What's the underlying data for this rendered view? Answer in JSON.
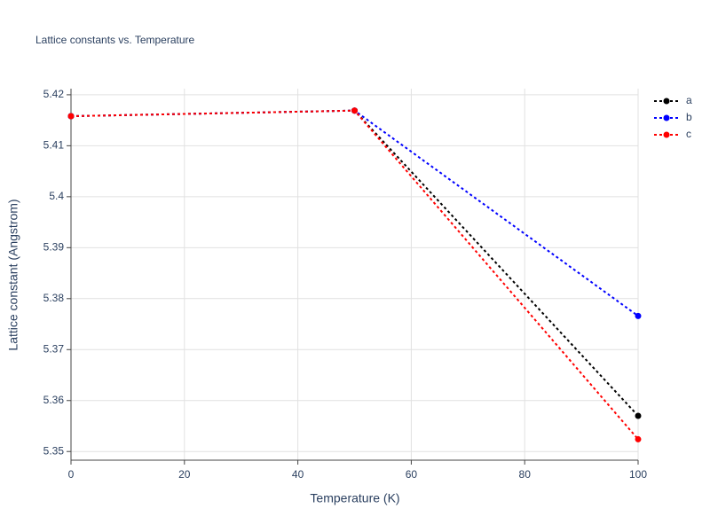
{
  "chart_data": {
    "type": "line",
    "title": "Lattice constants vs. Temperature",
    "x_label": "Temperature (K)",
    "y_label": "Lattice constant (Angstrom)",
    "x": [
      0,
      50,
      100
    ],
    "series": [
      {
        "name": "a",
        "color": "#000000",
        "values": [
          5.4158,
          5.4169,
          5.357
        ]
      },
      {
        "name": "b",
        "color": "#0000ff",
        "values": [
          5.4158,
          5.4169,
          5.3766
        ]
      },
      {
        "name": "c",
        "color": "#ff0000",
        "values": [
          5.4158,
          5.4169,
          5.3524
        ]
      }
    ],
    "xlim": [
      0,
      100
    ],
    "xticks": [
      0,
      20,
      40,
      60,
      80,
      100
    ],
    "ylim": [
      5.3483,
      5.4212
    ],
    "yticks": [
      5.35,
      5.36,
      5.37,
      5.38,
      5.39,
      5.4,
      5.41,
      5.42
    ],
    "grid": true,
    "legend": "top-right"
  }
}
